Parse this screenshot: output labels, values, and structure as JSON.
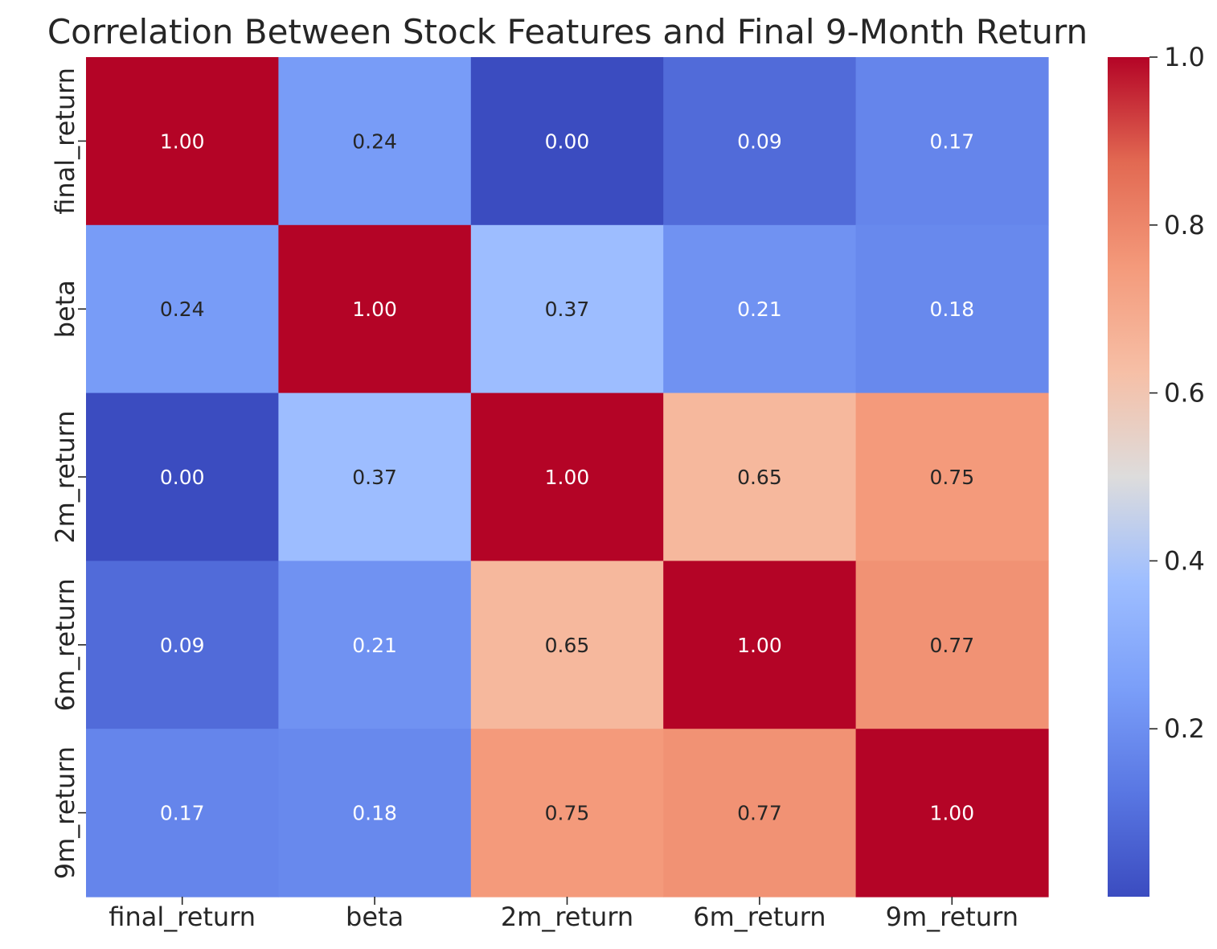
{
  "chart_data": {
    "type": "heatmap",
    "title": "Correlation Between Stock Features and Final 9-Month Return",
    "x_labels": [
      "final_return",
      "beta",
      "2m_return",
      "6m_return",
      "9m_return"
    ],
    "y_labels": [
      "final_return",
      "beta",
      "2m_return",
      "6m_return",
      "9m_return"
    ],
    "values": [
      [
        1.0,
        0.24,
        0.0,
        0.09,
        0.17
      ],
      [
        0.24,
        1.0,
        0.37,
        0.21,
        0.18
      ],
      [
        0.0,
        0.37,
        1.0,
        0.65,
        0.75
      ],
      [
        0.09,
        0.21,
        0.65,
        1.0,
        0.77
      ],
      [
        0.17,
        0.18,
        0.75,
        0.77,
        1.0
      ]
    ],
    "annotation_format": "0.00",
    "colormap": "coolwarm",
    "colorbar": {
      "range": [
        0.0,
        1.0
      ],
      "ticks": [
        0.2,
        0.4,
        0.6,
        0.8,
        1.0
      ],
      "tick_labels": [
        "0.2",
        "0.4",
        "0.6",
        "0.8",
        "1.0"
      ],
      "position": "right"
    }
  }
}
